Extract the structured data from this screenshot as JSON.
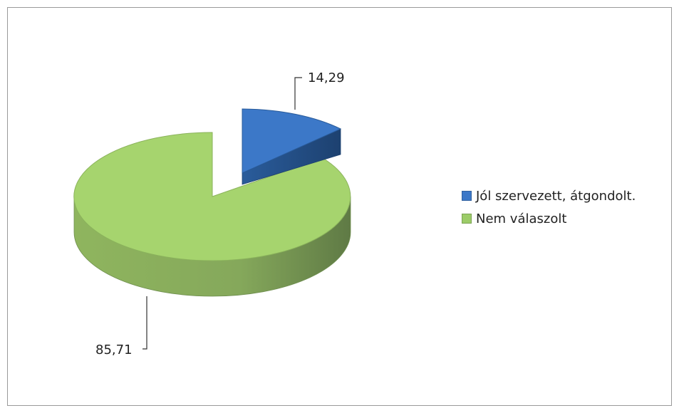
{
  "chart_data": {
    "type": "pie",
    "title": "",
    "categories": [
      "Jól szervezett, átgondolt.",
      "Nem válaszolt"
    ],
    "values": [
      14.29,
      85.71
    ],
    "value_labels": [
      "14,29",
      "85,71"
    ],
    "colors": [
      "#3c78c8",
      "#9ccc68"
    ],
    "style": "3d-exploded",
    "legend_position": "right"
  }
}
